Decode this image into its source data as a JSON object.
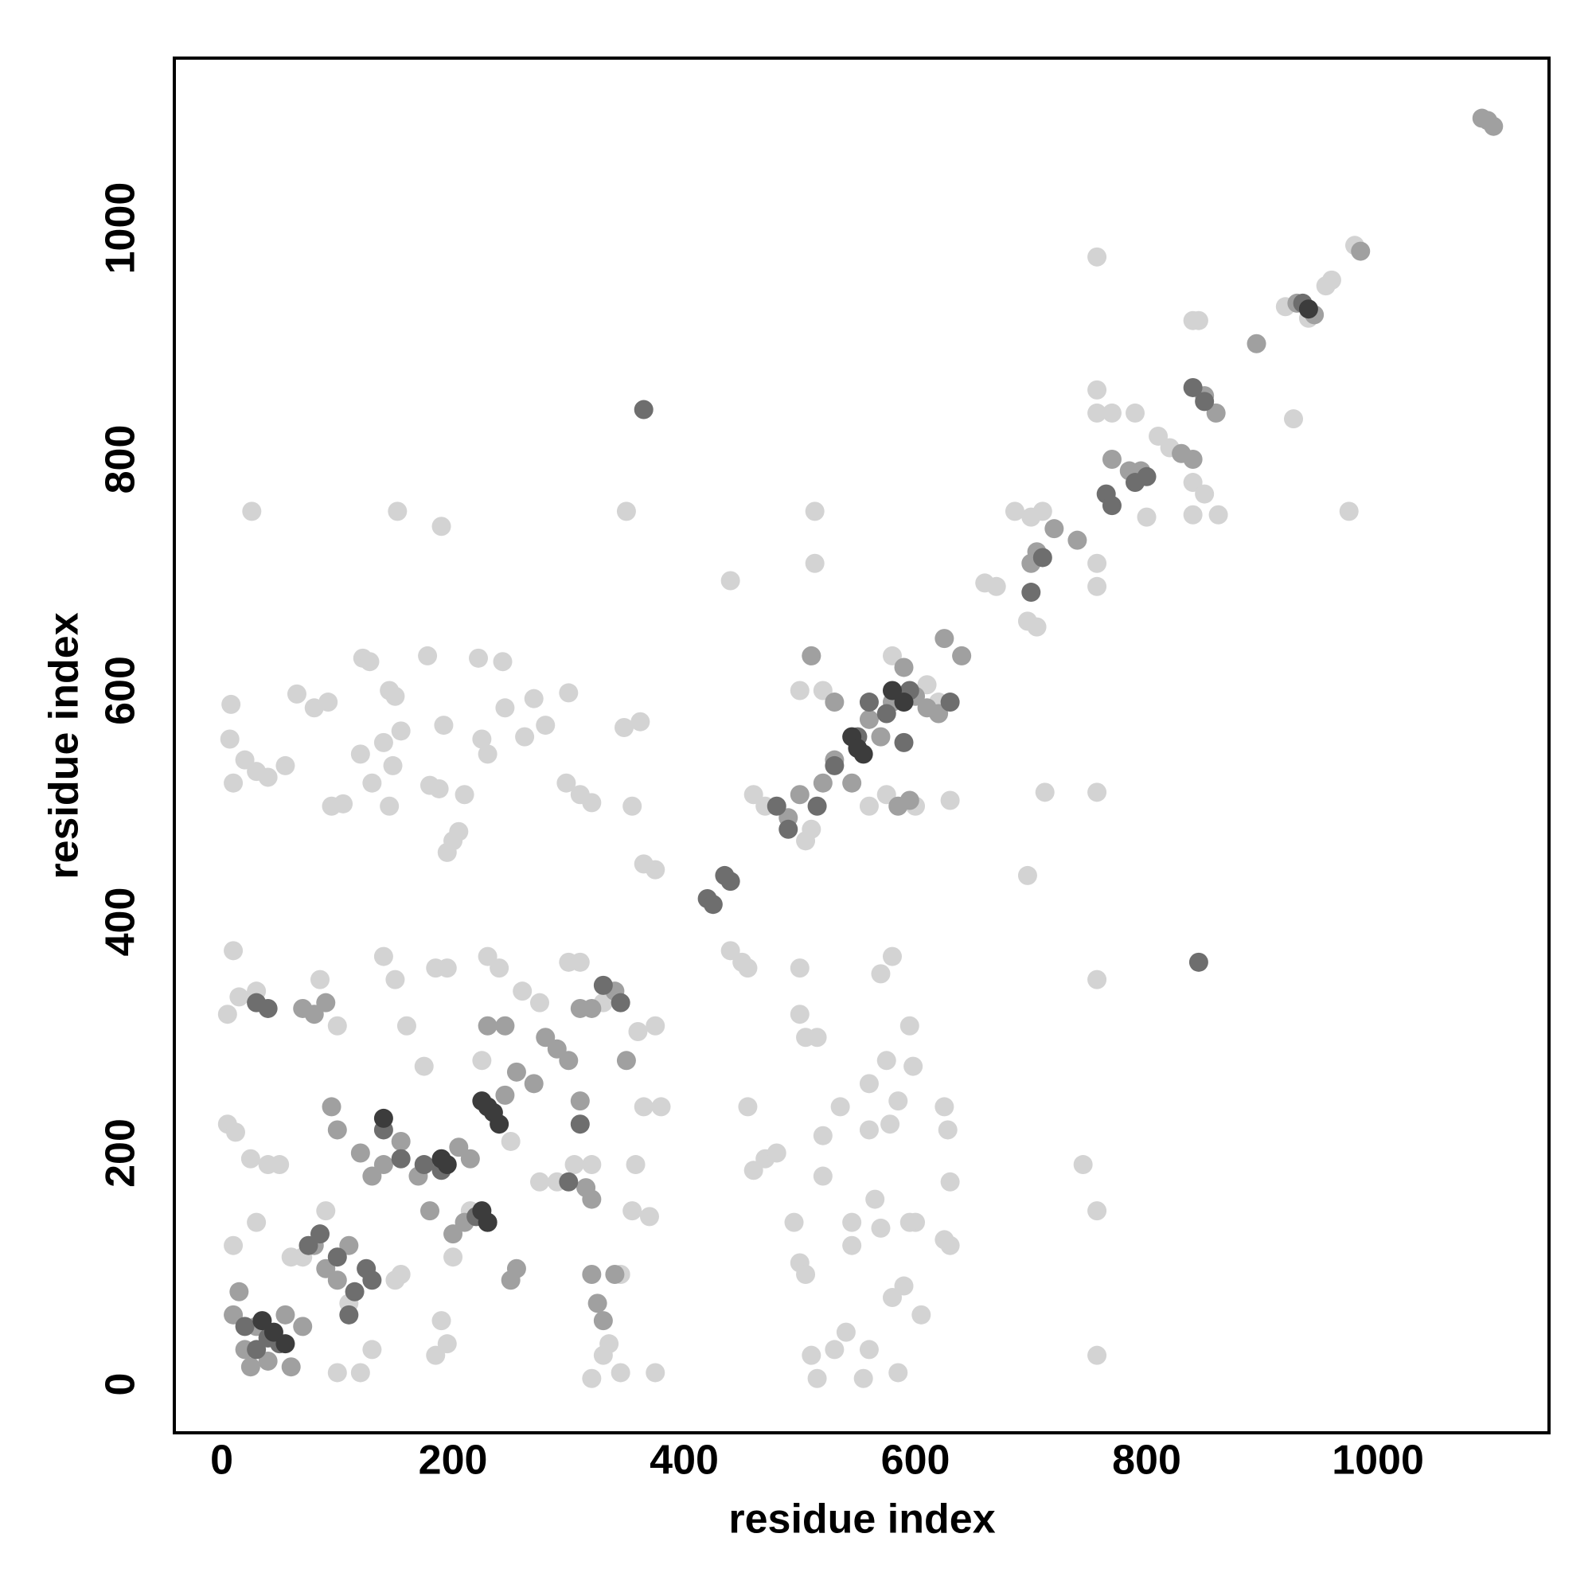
{
  "chart_data": {
    "type": "scatter",
    "x_label": "residue index",
    "y_label": "residue index",
    "xlim": [
      -41,
      1148
    ],
    "ylim": [
      -42,
      1147
    ],
    "xticks": [
      0,
      200,
      400,
      600,
      800,
      1000
    ],
    "yticks": [
      0,
      200,
      400,
      600,
      800,
      1000
    ],
    "grid": false,
    "series": [
      {
        "color": "#d3d3d3",
        "x": [
          26,
          152,
          190,
          350,
          513,
          513,
          440,
          757,
          7,
          10,
          20,
          30,
          40,
          55,
          8,
          65,
          80,
          92,
          95,
          105,
          122,
          128,
          120,
          130,
          145,
          150,
          140,
          148,
          145,
          155,
          178,
          180,
          188,
          192,
          195,
          200,
          205,
          210,
          222,
          225,
          230,
          243,
          245,
          262,
          270,
          280,
          300,
          298,
          310,
          320,
          348,
          355,
          365,
          375,
          362,
          5,
          10,
          15,
          30,
          5,
          12,
          25,
          40,
          10,
          30,
          50,
          85,
          100,
          140,
          150,
          160,
          175,
          185,
          195,
          230,
          240,
          260,
          275,
          300,
          310,
          330,
          360,
          375,
          365,
          380,
          358,
          370,
          355,
          190,
          195,
          185,
          130,
          120,
          100,
          110,
          90,
          70,
          60,
          150,
          155,
          200,
          215,
          225,
          250,
          275,
          290,
          305,
          320,
          345,
          335,
          345,
          375,
          320,
          330,
          495,
          500,
          505,
          500,
          505,
          515,
          500,
          520,
          520,
          510,
          515,
          530,
          540,
          545,
          545,
          555,
          560,
          560,
          575,
          570,
          580,
          585,
          595,
          598,
          600,
          605,
          590,
          585,
          580,
          625,
          628,
          630,
          625,
          630,
          455,
          460,
          470,
          480,
          440,
          450,
          455,
          595,
          578,
          560,
          535,
          565,
          570,
          745,
          757,
          757,
          757,
          757,
          712,
          697,
          686,
          700,
          710,
          697,
          705,
          660,
          670,
          757,
          757,
          757,
          757,
          770,
          790,
          800,
          810,
          820,
          840,
          840,
          850,
          840,
          845,
          862,
          927,
          975,
          920,
          940,
          955,
          960,
          980,
          505,
          510,
          460,
          470,
          560,
          575,
          630,
          600,
          620,
          500,
          510,
          520,
          580,
          610,
          640
        ],
        "values": [
          755,
          755,
          742,
          755,
          755,
          710,
          695,
          975,
          558,
          520,
          540,
          530,
          525,
          535,
          588,
          597,
          585,
          590,
          500,
          502,
          628,
          625,
          545,
          520,
          600,
          595,
          555,
          535,
          500,
          565,
          630,
          518,
          515,
          570,
          460,
          470,
          478,
          510,
          628,
          558,
          545,
          625,
          585,
          560,
          593,
          570,
          598,
          520,
          510,
          503,
          568,
          500,
          450,
          445,
          573,
          320,
          375,
          335,
          340,
          225,
          218,
          195,
          190,
          120,
          140,
          190,
          350,
          310,
          370,
          350,
          310,
          275,
          360,
          360,
          370,
          360,
          340,
          330,
          365,
          365,
          330,
          305,
          310,
          240,
          240,
          190,
          145,
          150,
          55,
          35,
          25,
          30,
          10,
          10,
          70,
          150,
          110,
          110,
          90,
          95,
          110,
          150,
          280,
          210,
          175,
          175,
          190,
          190,
          95,
          35,
          10,
          10,
          5,
          25,
          140,
          105,
          95,
          320,
          300,
          300,
          360,
          180,
          215,
          25,
          5,
          30,
          45,
          140,
          120,
          5,
          30,
          220,
          280,
          355,
          370,
          245,
          310,
          275,
          140,
          60,
          85,
          10,
          75,
          240,
          220,
          175,
          125,
          120,
          240,
          185,
          195,
          200,
          375,
          365,
          360,
          140,
          225,
          260,
          240,
          160,
          135,
          190,
          350,
          150,
          25,
          512,
          512,
          440,
          755,
          750,
          755,
          660,
          655,
          693,
          690,
          710,
          690,
          840,
          860,
          840,
          840,
          750,
          820,
          810,
          752,
          780,
          770,
          920,
          920,
          752,
          835,
          755,
          932,
          922,
          950,
          955,
          985,
          470,
          480,
          510,
          500,
          500,
          510,
          505,
          500,
          590,
          600,
          630,
          600,
          630,
          605,
          630
        ]
      },
      {
        "color": "#a0a0a0",
        "x": [
          30,
          20,
          40,
          60,
          15,
          10,
          25,
          55,
          70,
          80,
          90,
          100,
          110,
          95,
          100,
          90,
          80,
          70,
          120,
          130,
          140,
          155,
          170,
          180,
          200,
          210,
          205,
          215,
          250,
          255,
          245,
          255,
          270,
          245,
          280,
          290,
          300,
          310,
          320,
          340,
          350,
          230,
          320,
          325,
          330,
          315,
          320,
          490,
          500,
          520,
          530,
          545,
          560,
          570,
          580,
          590,
          600,
          610,
          620,
          625,
          640,
          585,
          595,
          530,
          510,
          700,
          705,
          720,
          740,
          770,
          785,
          795,
          830,
          840,
          850,
          860,
          895,
          930,
          945,
          985,
          1095,
          1100,
          1090,
          310,
          340
        ],
        "values": [
          50,
          30,
          20,
          15,
          80,
          60,
          15,
          60,
          50,
          120,
          100,
          90,
          120,
          240,
          220,
          330,
          320,
          325,
          200,
          180,
          190,
          210,
          180,
          150,
          130,
          140,
          205,
          195,
          90,
          100,
          250,
          270,
          260,
          310,
          300,
          290,
          280,
          245,
          325,
          340,
          280,
          310,
          95,
          70,
          55,
          170,
          160,
          490,
          510,
          520,
          540,
          520,
          575,
          560,
          590,
          620,
          595,
          585,
          580,
          645,
          630,
          500,
          505,
          590,
          630,
          710,
          720,
          740,
          730,
          800,
          790,
          790,
          805,
          800,
          855,
          840,
          900,
          935,
          925,
          980,
          1093,
          1088,
          1095,
          325,
          95
        ]
      },
      {
        "color": "#6e6e6e",
        "x": [
          30,
          40,
          50,
          20,
          75,
          85,
          100,
          115,
          125,
          110,
          130,
          140,
          155,
          175,
          190,
          220,
          230,
          300,
          310,
          330,
          345,
          365,
          845,
          420,
          425,
          435,
          440,
          480,
          490,
          515,
          530,
          550,
          560,
          575,
          590,
          595,
          630,
          700,
          710,
          765,
          770,
          790,
          800,
          840,
          850,
          935,
          30,
          40
        ],
        "values": [
          30,
          40,
          35,
          50,
          120,
          130,
          110,
          80,
          100,
          60,
          90,
          220,
          195,
          190,
          185,
          145,
          140,
          175,
          225,
          345,
          330,
          843,
          365,
          420,
          415,
          440,
          435,
          500,
          480,
          500,
          535,
          560,
          590,
          580,
          555,
          600,
          590,
          685,
          715,
          770,
          760,
          780,
          785,
          862,
          850,
          935,
          330,
          325
        ]
      },
      {
        "color": "#3c3c3c",
        "x": [
          35,
          45,
          55,
          190,
          195,
          225,
          230,
          235,
          240,
          225,
          230,
          545,
          550,
          555,
          590,
          580,
          140,
          940
        ],
        "values": [
          55,
          45,
          35,
          195,
          190,
          245,
          240,
          235,
          225,
          150,
          140,
          560,
          550,
          545,
          590,
          600,
          230,
          930
        ]
      }
    ]
  }
}
